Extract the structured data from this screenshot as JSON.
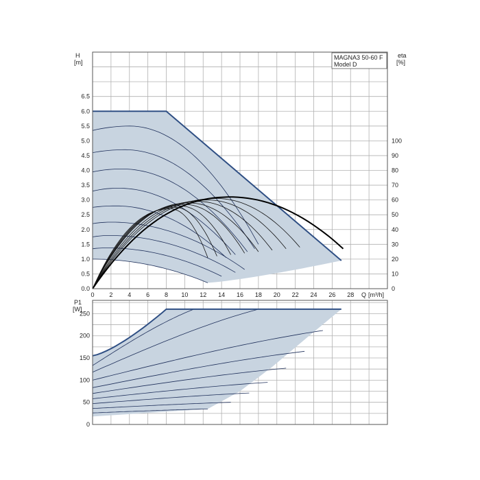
{
  "chart_data": [
    {
      "type": "line",
      "name": "head",
      "ylabel": "H",
      "yunit": "[m]",
      "y2label": "eta",
      "y2unit": "[%]",
      "xlabel": "Q",
      "xunit": "[m³/h]",
      "legend_lines": [
        "MAGNA3 50-60 F",
        "Model D"
      ],
      "legend_position": "top-right",
      "grid": true,
      "xlim": [
        0,
        32
      ],
      "ylim": [
        0,
        8
      ],
      "y2lim": [
        0,
        160
      ],
      "x_ticks": [
        "0",
        "2",
        "4",
        "6",
        "8",
        "10",
        "12",
        "14",
        "16",
        "18",
        "20",
        "22",
        "24",
        "26",
        "28"
      ],
      "y_ticks": [
        "0.0",
        "0.5",
        "1.0",
        "1.5",
        "2.0",
        "2.5",
        "3.0",
        "3.5",
        "4.0",
        "4.5",
        "5.0",
        "5.5",
        "6.0",
        "6.5"
      ],
      "y2_ticks": [
        "0",
        "10",
        "20",
        "30",
        "40",
        "50",
        "60",
        "70",
        "80",
        "90",
        "100"
      ],
      "envelope": [
        [
          0,
          6.0
        ],
        [
          8,
          6.0
        ],
        [
          27,
          0.95
        ],
        [
          12.5,
          0.2
        ],
        [
          0,
          1.0
        ]
      ],
      "head_curves": [
        {
          "h0": 5.35,
          "hmax": 5.5,
          "qpeak": 4.0,
          "qend": 18.0,
          "hend": 1.5
        },
        {
          "h0": 4.6,
          "hmax": 4.7,
          "qpeak": 3.5,
          "qend": 17.6,
          "hend": 1.35
        },
        {
          "h0": 3.95,
          "hmax": 4.05,
          "qpeak": 3.2,
          "qend": 16.8,
          "hend": 1.25
        },
        {
          "h0": 3.3,
          "hmax": 3.4,
          "qpeak": 2.8,
          "qend": 15.5,
          "hend": 1.15
        },
        {
          "h0": 2.75,
          "hmax": 2.8,
          "qpeak": 2.5,
          "qend": 14.5,
          "hend": 1.05
        },
        {
          "h0": 2.2,
          "hmax": 2.25,
          "qpeak": 2.0,
          "qend": 16.5,
          "hend": 0.65
        },
        {
          "h0": 1.75,
          "hmax": 1.8,
          "qpeak": 1.8,
          "qend": 15.5,
          "hend": 0.55
        },
        {
          "h0": 1.35,
          "hmax": 1.38,
          "qpeak": 1.5,
          "qend": 14.0,
          "hend": 0.42
        },
        {
          "h0": 1.0,
          "hmax": 1.0,
          "qpeak": 0.0,
          "qend": 12.5,
          "hend": 0.2
        }
      ],
      "efficiency_curve": {
        "qpeak": 15.0,
        "etapeak": 62,
        "qend": 27.2,
        "etaend": 27
      },
      "efficiency_partial": [
        {
          "qpeak": 13.5,
          "etapeak": 61,
          "qend": 22.5,
          "etaend": 28
        },
        {
          "qpeak": 12.5,
          "etapeak": 60,
          "qend": 21.0,
          "etaend": 27
        },
        {
          "qpeak": 11.5,
          "etapeak": 59,
          "qend": 19.5,
          "etaend": 26
        },
        {
          "qpeak": 10.5,
          "etapeak": 58,
          "qend": 18.0,
          "etaend": 25
        },
        {
          "qpeak": 10.0,
          "etapeak": 57,
          "qend": 16.5,
          "etaend": 24
        },
        {
          "qpeak": 9.5,
          "etapeak": 56,
          "qend": 15.0,
          "etaend": 23
        },
        {
          "qpeak": 9.0,
          "etapeak": 55,
          "qend": 13.5,
          "etaend": 22
        },
        {
          "qpeak": 8.5,
          "etapeak": 54,
          "qend": 12.5,
          "etaend": 21
        }
      ]
    },
    {
      "type": "line",
      "name": "power",
      "ylabel": "P1",
      "yunit": "[W]",
      "grid": true,
      "xlim": [
        0,
        32
      ],
      "ylim": [
        0,
        280
      ],
      "y_ticks": [
        "0",
        "50",
        "100",
        "150",
        "200",
        "250"
      ],
      "envelope": [
        [
          0,
          155
        ],
        [
          8,
          260
        ],
        [
          27,
          260
        ],
        [
          23.5,
          200
        ],
        [
          19.5,
          130
        ],
        [
          16,
          75
        ],
        [
          12.5,
          35
        ],
        [
          0,
          18
        ]
      ],
      "power_curves": [
        {
          "p0": 133,
          "qend": 11.0,
          "pend": 260
        },
        {
          "p0": 118,
          "qend": 18.0,
          "pend": 260
        },
        {
          "p0": 100,
          "qend": 25.0,
          "pend": 212
        },
        {
          "p0": 83,
          "qend": 23.0,
          "pend": 165
        },
        {
          "p0": 70,
          "qend": 21.0,
          "pend": 127
        },
        {
          "p0": 58,
          "qend": 19.0,
          "pend": 95
        },
        {
          "p0": 47,
          "qend": 17.0,
          "pend": 71
        },
        {
          "p0": 36,
          "qend": 15.0,
          "pend": 50
        },
        {
          "p0": 26,
          "qend": 12.5,
          "pend": 35
        }
      ]
    }
  ]
}
